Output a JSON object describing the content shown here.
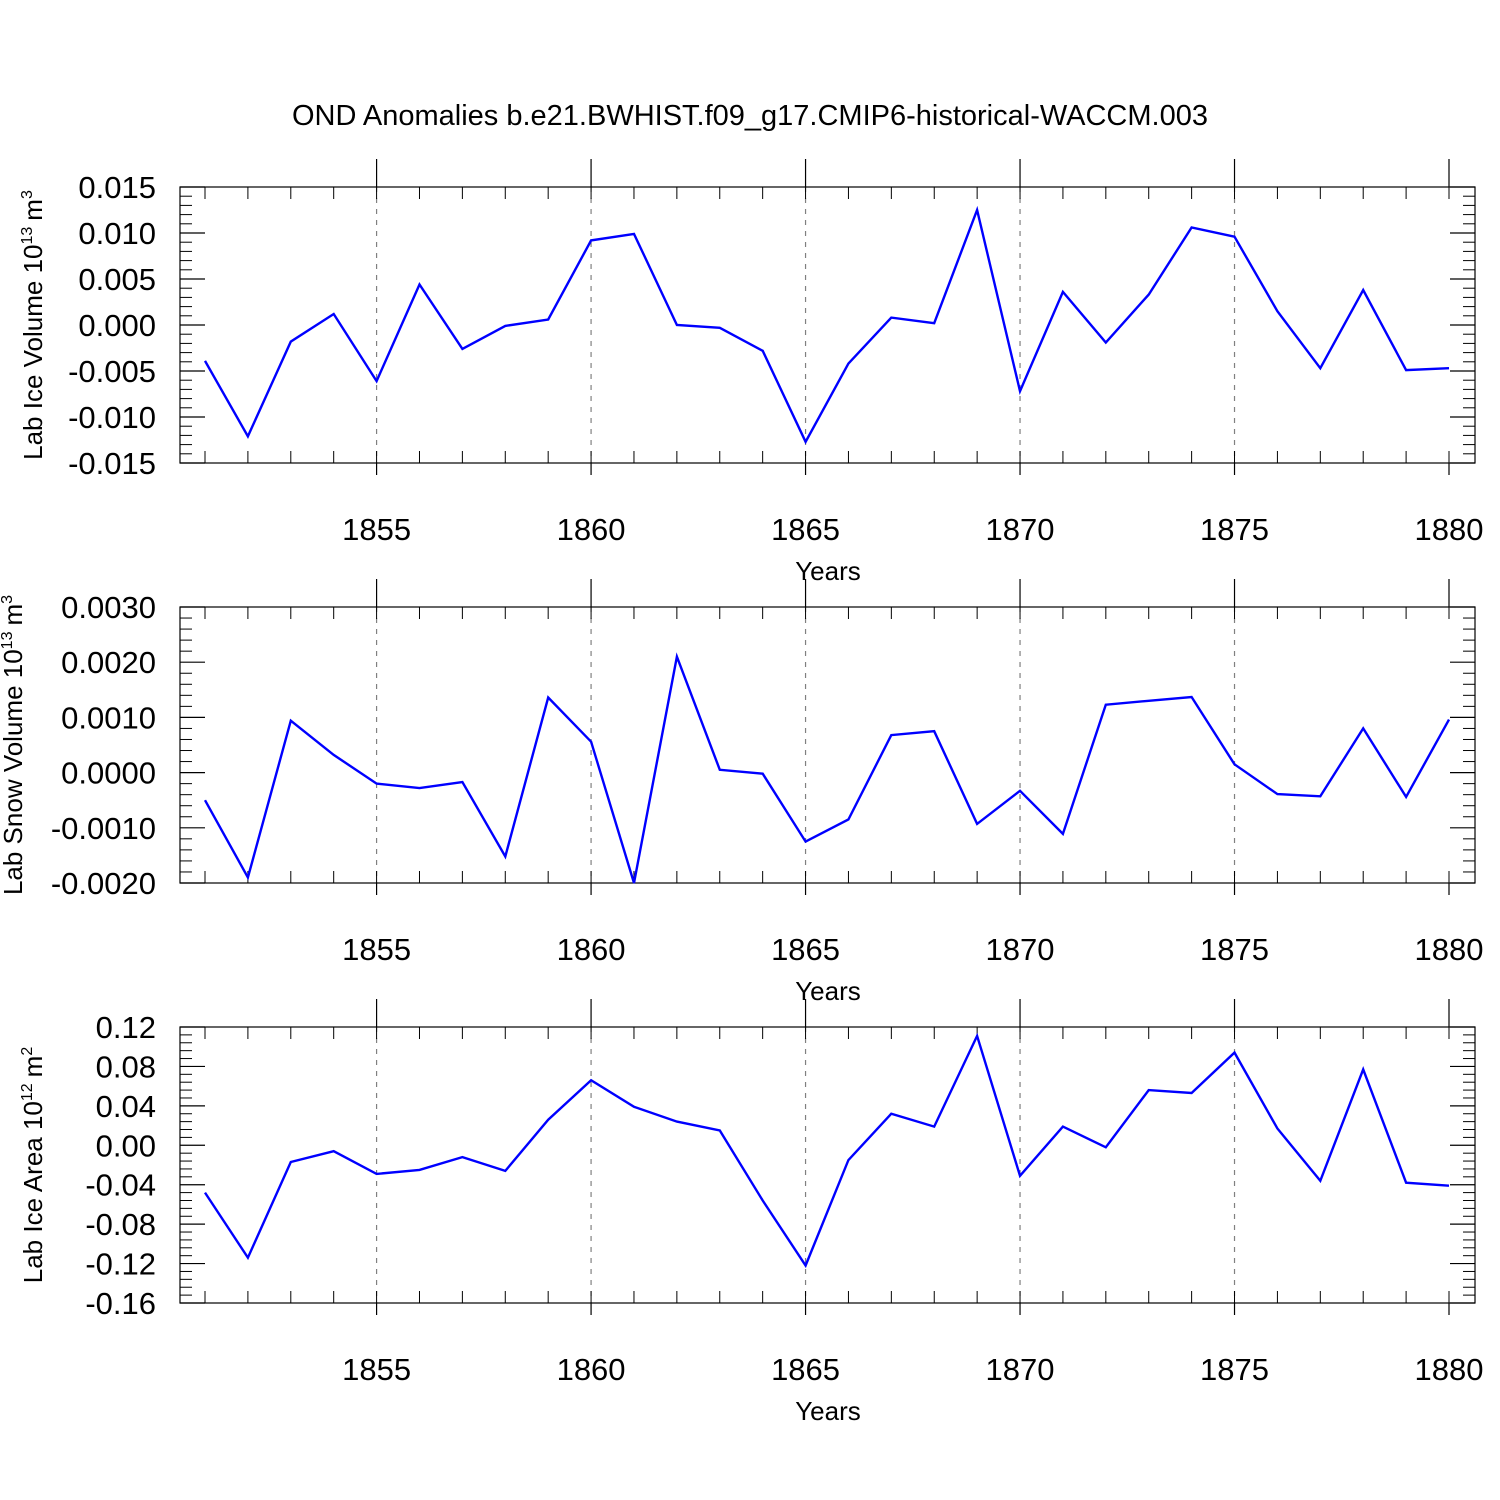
{
  "title": "OND Anomalies b.e21.BWHIST.f09_g17.CMIP6-historical-WACCM.003",
  "colors": {
    "line": "#0000ff",
    "axis": "#000000",
    "grid": "#808080"
  },
  "chart_data": [
    {
      "type": "line",
      "ylabel_main": "Lab Ice Volume 10",
      "ylabel_exp": "13",
      "ylabel_unit": "m",
      "ylabel_unit_exp": "3",
      "xlabel": "Years",
      "xlim": [
        1850.6,
        1880
      ],
      "ylim": [
        -0.015,
        0.015
      ],
      "yticks": [
        0.015,
        0.01,
        0.005,
        0.0,
        -0.005,
        -0.01,
        -0.015
      ],
      "ytick_labels": [
        "0.015",
        "0.010",
        "0.005",
        "0.000",
        "-0.005",
        "-0.010",
        "-0.015"
      ],
      "xticks": [
        1855,
        1860,
        1865,
        1870,
        1875,
        1880
      ],
      "xtick_labels": [
        "1855",
        "1860",
        "1865",
        "1870",
        "1875",
        "1880"
      ],
      "grid_x": [
        1855,
        1860,
        1865,
        1870,
        1875
      ],
      "x": [
        1851,
        1852,
        1853,
        1854,
        1855,
        1856,
        1857,
        1858,
        1859,
        1860,
        1861,
        1862,
        1863,
        1864,
        1865,
        1866,
        1867,
        1868,
        1869,
        1870,
        1871,
        1872,
        1873,
        1874,
        1875,
        1876,
        1877,
        1878,
        1879,
        1880
      ],
      "values": [
        -0.0039,
        -0.0121,
        -0.0018,
        0.0012,
        -0.0061,
        0.0044,
        -0.0026,
        -0.0001,
        0.0006,
        0.0092,
        0.0099,
        0.0,
        -0.0003,
        -0.0028,
        -0.0127,
        -0.0042,
        0.0008,
        0.0002,
        0.0125,
        -0.0072,
        0.0036,
        -0.0019,
        0.0033,
        0.0106,
        0.0096,
        0.0015,
        -0.0047,
        0.0038,
        -0.0049,
        -0.0047
      ]
    },
    {
      "type": "line",
      "ylabel_main": "Lab Snow Volume 10",
      "ylabel_exp": "13",
      "ylabel_unit": "m",
      "ylabel_unit_exp": "3",
      "xlabel": "Years",
      "xlim": [
        1850.6,
        1880
      ],
      "ylim": [
        -0.002,
        0.003
      ],
      "yticks": [
        0.003,
        0.002,
        0.001,
        0.0,
        -0.001,
        -0.002
      ],
      "ytick_labels": [
        "0.0030",
        "0.0020",
        "0.0010",
        "0.0000",
        "-0.0010",
        "-0.0020"
      ],
      "xticks": [
        1855,
        1860,
        1865,
        1870,
        1875,
        1880
      ],
      "xtick_labels": [
        "1855",
        "1860",
        "1865",
        "1870",
        "1875",
        "1880"
      ],
      "grid_x": [
        1855,
        1860,
        1865,
        1870,
        1875
      ],
      "x": [
        1851,
        1852,
        1853,
        1854,
        1855,
        1856,
        1857,
        1858,
        1859,
        1860,
        1861,
        1862,
        1863,
        1864,
        1865,
        1866,
        1867,
        1868,
        1869,
        1870,
        1871,
        1872,
        1873,
        1874,
        1875,
        1876,
        1877,
        1878,
        1879,
        1880
      ],
      "values": [
        -0.0005,
        -0.0019,
        0.00094,
        0.00032,
        -0.0002,
        -0.00028,
        -0.00017,
        -0.00152,
        0.00136,
        0.00056,
        -0.002,
        0.0021,
        5e-05,
        -2e-05,
        -0.00125,
        -0.00085,
        0.00068,
        0.00075,
        -0.00093,
        -0.00033,
        -0.00111,
        0.00123,
        0.0013,
        0.00137,
        0.00015,
        -0.00039,
        -0.00043,
        0.0008,
        -0.00044,
        0.00096
      ]
    },
    {
      "type": "line",
      "ylabel_main": "Lab Ice Area 10",
      "ylabel_exp": "12",
      "ylabel_unit": "m",
      "ylabel_unit_exp": "2",
      "xlabel": "Years",
      "xlim": [
        1850.6,
        1880
      ],
      "ylim": [
        -0.16,
        0.12
      ],
      "yticks": [
        0.12,
        0.08,
        0.04,
        0.0,
        -0.04,
        -0.08,
        -0.12,
        -0.16
      ],
      "ytick_labels": [
        "0.12",
        "0.08",
        "0.04",
        "0.00",
        "-0.04",
        "-0.08",
        "-0.12",
        "-0.16"
      ],
      "xticks": [
        1855,
        1860,
        1865,
        1870,
        1875,
        1880
      ],
      "xtick_labels": [
        "1855",
        "1860",
        "1865",
        "1870",
        "1875",
        "1880"
      ],
      "grid_x": [
        1855,
        1860,
        1865,
        1870,
        1875
      ],
      "x": [
        1851,
        1852,
        1853,
        1854,
        1855,
        1856,
        1857,
        1858,
        1859,
        1860,
        1861,
        1862,
        1863,
        1864,
        1865,
        1866,
        1867,
        1868,
        1869,
        1870,
        1871,
        1872,
        1873,
        1874,
        1875,
        1876,
        1877,
        1878,
        1879,
        1880
      ],
      "values": [
        -0.048,
        -0.114,
        -0.017,
        -0.006,
        -0.029,
        -0.025,
        -0.012,
        -0.026,
        0.026,
        0.066,
        0.039,
        0.024,
        0.015,
        -0.056,
        -0.122,
        -0.015,
        0.032,
        0.019,
        0.111,
        -0.031,
        0.019,
        -0.002,
        0.056,
        0.053,
        0.094,
        0.017,
        -0.036,
        0.077,
        -0.038,
        -0.041
      ]
    }
  ]
}
